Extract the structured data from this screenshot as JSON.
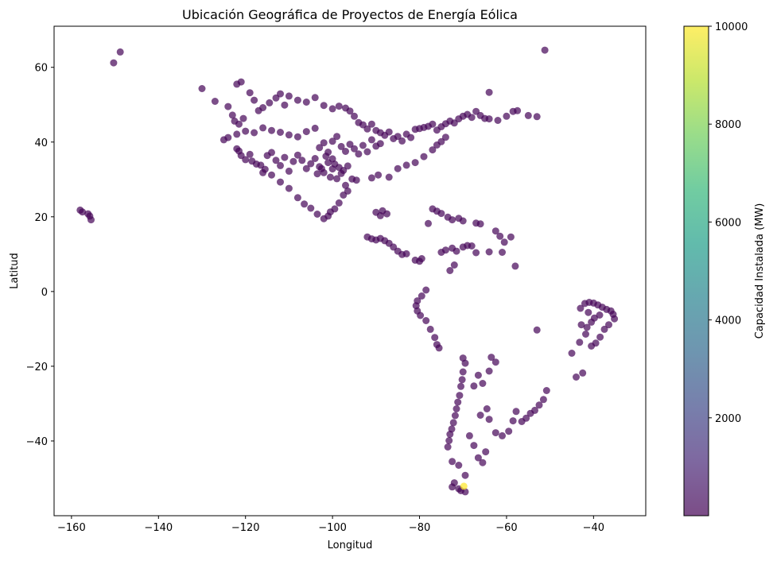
{
  "chart_data": {
    "type": "scatter",
    "title": "Ubicación Geográfica de Proyectos de Energía Eólica",
    "xlabel": "Longitud",
    "ylabel": "Latitud",
    "xlim": [
      -164,
      -28
    ],
    "ylim": [
      -60,
      71
    ],
    "xticks": [
      -160,
      -140,
      -120,
      -100,
      -80,
      -60,
      -40
    ],
    "yticks": [
      -40,
      -20,
      0,
      20,
      40,
      60
    ],
    "grid": false,
    "colorbar": {
      "label": "Capacidad Instalada (MW)",
      "range": [
        0,
        10000
      ],
      "ticks": [
        2000,
        4000,
        6000,
        8000,
        10000
      ],
      "colormap": "viridis",
      "alpha": 0.7
    },
    "colormap_stops": [
      "#440154",
      "#482878",
      "#3e4989",
      "#31688e",
      "#26828e",
      "#1f9e89",
      "#35b779",
      "#6ece58",
      "#b5de2b",
      "#fde725"
    ],
    "series": [
      {
        "points": [
          [
            -158,
            21.8
          ],
          [
            -157.5,
            21.3
          ],
          [
            -156.2,
            20.8
          ],
          [
            -155.8,
            20.2
          ],
          [
            -155.5,
            19.2
          ],
          [
            -150.3,
            61.2
          ],
          [
            -148.8,
            64.1
          ],
          [
            -130,
            54.3
          ],
          [
            -127,
            50.9
          ],
          [
            -124,
            49.5
          ],
          [
            -123,
            47.2
          ],
          [
            -122.5,
            45.6
          ],
          [
            -121.5,
            44.8
          ],
          [
            -120.5,
            46.3
          ],
          [
            -122,
            55.5
          ],
          [
            -121,
            56.1
          ],
          [
            -119,
            53.2
          ],
          [
            -118,
            51.2
          ],
          [
            -117,
            48.4
          ],
          [
            -116,
            49.2
          ],
          [
            -114.5,
            50.5
          ],
          [
            -113,
            51.8
          ],
          [
            -112,
            52.9
          ],
          [
            -111,
            49.9
          ],
          [
            -110,
            52.3
          ],
          [
            -108,
            51.2
          ],
          [
            -106,
            50.7
          ],
          [
            -104,
            51.9
          ],
          [
            -102,
            49.8
          ],
          [
            -100,
            48.9
          ],
          [
            -98.5,
            49.6
          ],
          [
            -97,
            49.1
          ],
          [
            -96,
            48.3
          ],
          [
            -95,
            46.9
          ],
          [
            -94,
            45.2
          ],
          [
            -93,
            44.6
          ],
          [
            -92,
            43.5
          ],
          [
            -91,
            44.8
          ],
          [
            -90,
            43.1
          ],
          [
            -89,
            42.5
          ],
          [
            -88,
            41.8
          ],
          [
            -87,
            42.7
          ],
          [
            -86,
            40.9
          ],
          [
            -85,
            41.5
          ],
          [
            -84,
            40.3
          ],
          [
            -83,
            42.1
          ],
          [
            -82,
            41.2
          ],
          [
            -81,
            43.4
          ],
          [
            -80,
            43.6
          ],
          [
            -79,
            43.9
          ],
          [
            -78,
            44.2
          ],
          [
            -77,
            44.8
          ],
          [
            -76,
            43.2
          ],
          [
            -75,
            44.1
          ],
          [
            -74,
            44.9
          ],
          [
            -73,
            45.6
          ],
          [
            -72,
            45.1
          ],
          [
            -71,
            46.2
          ],
          [
            -70,
            46.9
          ],
          [
            -69,
            47.4
          ],
          [
            -68,
            46.6
          ],
          [
            -67,
            48.2
          ],
          [
            -66,
            47.1
          ],
          [
            -65,
            46.3
          ],
          [
            -64,
            46.2
          ],
          [
            -62,
            45.8
          ],
          [
            -60,
            46.9
          ],
          [
            -58.5,
            48.2
          ],
          [
            -57.5,
            48.4
          ],
          [
            -55,
            47.1
          ],
          [
            -53,
            46.8
          ],
          [
            -51.2,
            64.6
          ],
          [
            -64,
            53.3
          ],
          [
            -125,
            40.6
          ],
          [
            -124,
            41.2
          ],
          [
            -122,
            38.2
          ],
          [
            -121.5,
            37.6
          ],
          [
            -121,
            36.4
          ],
          [
            -120,
            35.3
          ],
          [
            -119,
            36.7
          ],
          [
            -118.5,
            34.9
          ],
          [
            -117.5,
            34.1
          ],
          [
            -116.5,
            33.8
          ],
          [
            -115.5,
            32.7
          ],
          [
            -115,
            36.4
          ],
          [
            -114,
            37.2
          ],
          [
            -113,
            35.1
          ],
          [
            -112,
            33.7
          ],
          [
            -111,
            35.9
          ],
          [
            -110,
            32.2
          ],
          [
            -109,
            34.8
          ],
          [
            -108,
            36.5
          ],
          [
            -107,
            35.1
          ],
          [
            -106,
            32.9
          ],
          [
            -105,
            34.2
          ],
          [
            -104,
            35.6
          ],
          [
            -103,
            33.4
          ],
          [
            -102,
            31.8
          ],
          [
            -101,
            34.5
          ],
          [
            -100,
            32.8
          ],
          [
            -99,
            30.2
          ],
          [
            -98,
            31.6
          ],
          [
            -97,
            28.4
          ],
          [
            -96.5,
            26.9
          ],
          [
            -97.5,
            25.8
          ],
          [
            -98.5,
            23.7
          ],
          [
            -99.5,
            22.1
          ],
          [
            -100.5,
            21.3
          ],
          [
            -101,
            20.2
          ],
          [
            -102,
            19.5
          ],
          [
            -103.5,
            20.7
          ],
          [
            -105,
            22.3
          ],
          [
            -106.5,
            23.4
          ],
          [
            -108,
            25.1
          ],
          [
            -110,
            27.6
          ],
          [
            -112,
            29.3
          ],
          [
            -114,
            31.2
          ],
          [
            -116,
            31.8
          ],
          [
            -103,
            38.5
          ],
          [
            -102,
            39.8
          ],
          [
            -101,
            37.3
          ],
          [
            -100,
            40.2
          ],
          [
            -99,
            41.5
          ],
          [
            -98,
            38.8
          ],
          [
            -97,
            37.5
          ],
          [
            -96,
            39.4
          ],
          [
            -95,
            38.2
          ],
          [
            -94,
            36.8
          ],
          [
            -93,
            39.1
          ],
          [
            -92,
            37.4
          ],
          [
            -91,
            40.6
          ],
          [
            -90,
            38.9
          ],
          [
            -89,
            39.6
          ],
          [
            -104,
            43.7
          ],
          [
            -106,
            42.8
          ],
          [
            -108,
            41.4
          ],
          [
            -110,
            41.9
          ],
          [
            -112,
            42.6
          ],
          [
            -114,
            43.1
          ],
          [
            -116,
            43.8
          ],
          [
            -118,
            42.5
          ],
          [
            -120,
            42.9
          ],
          [
            -122,
            42.1
          ],
          [
            -100,
            35.5
          ],
          [
            -101.5,
            36.2
          ],
          [
            -99.5,
            34.1
          ],
          [
            -98.5,
            33.2
          ],
          [
            -102.5,
            32.9
          ],
          [
            -103.5,
            31.5
          ],
          [
            -100.5,
            30.6
          ],
          [
            -97.5,
            32.4
          ],
          [
            -96.5,
            33.6
          ],
          [
            -95.5,
            30.1
          ],
          [
            -94.5,
            29.8
          ],
          [
            -91,
            30.4
          ],
          [
            -89.5,
            31.2
          ],
          [
            -87,
            30.6
          ],
          [
            -85,
            32.9
          ],
          [
            -83,
            33.8
          ],
          [
            -81,
            34.5
          ],
          [
            -79,
            36.1
          ],
          [
            -77,
            37.9
          ],
          [
            -76,
            39.2
          ],
          [
            -75,
            40.1
          ],
          [
            -74,
            41.3
          ],
          [
            -92,
            14.6
          ],
          [
            -91,
            14.1
          ],
          [
            -90,
            13.8
          ],
          [
            -89,
            14.2
          ],
          [
            -88,
            13.6
          ],
          [
            -87,
            12.9
          ],
          [
            -86,
            11.9
          ],
          [
            -85,
            10.8
          ],
          [
            -84,
            9.9
          ],
          [
            -83,
            10.1
          ],
          [
            -81,
            8.4
          ],
          [
            -80,
            8.1
          ],
          [
            -79.5,
            8.8
          ],
          [
            -90,
            21.2
          ],
          [
            -88.5,
            21.6
          ],
          [
            -89,
            20.3
          ],
          [
            -87.5,
            20.8
          ],
          [
            -77,
            22.1
          ],
          [
            -76,
            21.5
          ],
          [
            -75,
            20.9
          ],
          [
            -73.5,
            19.9
          ],
          [
            -72.5,
            19.2
          ],
          [
            -71,
            19.6
          ],
          [
            -70,
            18.9
          ],
          [
            -67,
            18.3
          ],
          [
            -66,
            18.1
          ],
          [
            -78,
            18.2
          ],
          [
            -75,
            10.5
          ],
          [
            -74,
            11.1
          ],
          [
            -72.5,
            11.6
          ],
          [
            -71.5,
            10.8
          ],
          [
            -70,
            11.9
          ],
          [
            -69,
            12.3
          ],
          [
            -68,
            12.2
          ],
          [
            -67,
            10.4
          ],
          [
            -64,
            10.6
          ],
          [
            -62.5,
            16.2
          ],
          [
            -61.5,
            14.8
          ],
          [
            -60.5,
            13.2
          ],
          [
            -61,
            10.5
          ],
          [
            -59,
            14.6
          ],
          [
            -72,
            7.1
          ],
          [
            -73,
            5.6
          ],
          [
            -58,
            6.8
          ],
          [
            -78.5,
            0.4
          ],
          [
            -79.5,
            -1.2
          ],
          [
            -80.5,
            -2.5
          ],
          [
            -80.8,
            -3.8
          ],
          [
            -80.5,
            -5.2
          ],
          [
            -79.8,
            -6.4
          ],
          [
            -78.5,
            -7.8
          ],
          [
            -77.5,
            -10.1
          ],
          [
            -76.5,
            -12.3
          ],
          [
            -76,
            -14.2
          ],
          [
            -75.5,
            -15.1
          ],
          [
            -70,
            -17.8
          ],
          [
            -69.5,
            -19.2
          ],
          [
            -70,
            -21.5
          ],
          [
            -70.2,
            -23.6
          ],
          [
            -70.5,
            -25.4
          ],
          [
            -70.8,
            -27.8
          ],
          [
            -71.2,
            -29.6
          ],
          [
            -71.5,
            -31.4
          ],
          [
            -71.8,
            -33.2
          ],
          [
            -72.2,
            -35.1
          ],
          [
            -72.6,
            -36.8
          ],
          [
            -73,
            -38.2
          ],
          [
            -73.2,
            -39.9
          ],
          [
            -73.5,
            -41.6
          ],
          [
            -72.5,
            -45.5
          ],
          [
            -71,
            -46.5
          ],
          [
            -69.5,
            -49.2
          ],
          [
            -68.5,
            -38.6
          ],
          [
            -67.5,
            -41.2
          ],
          [
            -66.5,
            -44.5
          ],
          [
            -65.5,
            -45.8
          ],
          [
            -64.8,
            -42.9
          ],
          [
            -66,
            -33.1
          ],
          [
            -64.5,
            -31.4
          ],
          [
            -64,
            -34.2
          ],
          [
            -62.5,
            -37.8
          ],
          [
            -61,
            -38.6
          ],
          [
            -59.5,
            -37.4
          ],
          [
            -58.5,
            -34.6
          ],
          [
            -57.8,
            -32.1
          ],
          [
            -56.5,
            -34.8
          ],
          [
            -55.5,
            -33.9
          ],
          [
            -54.5,
            -32.6
          ],
          [
            -53.5,
            -31.8
          ],
          [
            -52.5,
            -30.4
          ],
          [
            -51.5,
            -28.9
          ],
          [
            -50.8,
            -26.5
          ],
          [
            -67.5,
            -25.3
          ],
          [
            -66.5,
            -22.4
          ],
          [
            -65.5,
            -24.6
          ],
          [
            -63.5,
            -17.6
          ],
          [
            -62.5,
            -18.9
          ],
          [
            -64,
            -21.3
          ],
          [
            -53,
            -10.3
          ],
          [
            -45,
            -16.5
          ],
          [
            -44,
            -22.9
          ],
          [
            -42.5,
            -21.8
          ],
          [
            -43,
            -4.5
          ],
          [
            -42,
            -3.2
          ],
          [
            -41,
            -2.9
          ],
          [
            -40,
            -3.1
          ],
          [
            -39,
            -3.6
          ],
          [
            -38,
            -4.2
          ],
          [
            -37,
            -4.8
          ],
          [
            -36,
            -5.2
          ],
          [
            -35.5,
            -6.1
          ],
          [
            -35.2,
            -7.3
          ],
          [
            -36.5,
            -8.9
          ],
          [
            -37.5,
            -10.1
          ],
          [
            -38.5,
            -12.2
          ],
          [
            -39.5,
            -13.8
          ],
          [
            -40.5,
            -14.6
          ],
          [
            -41.5,
            -9.6
          ],
          [
            -40.5,
            -8.2
          ],
          [
            -39.8,
            -7.1
          ],
          [
            -38.6,
            -6.3
          ],
          [
            -41.8,
            -11.4
          ],
          [
            -43.2,
            -13.6
          ],
          [
            -42.8,
            -8.9
          ],
          [
            -41.2,
            -5.6
          ],
          [
            -72.5,
            -52.3
          ],
          [
            -71,
            -52.8
          ],
          [
            -70.5,
            -53.3
          ],
          [
            -69.5,
            -53.6
          ],
          [
            -72,
            -51.2
          ]
        ],
        "value": 80
      },
      {
        "points": [
          [
            -69.8,
            -52.1
          ]
        ],
        "value": 10000
      }
    ]
  }
}
